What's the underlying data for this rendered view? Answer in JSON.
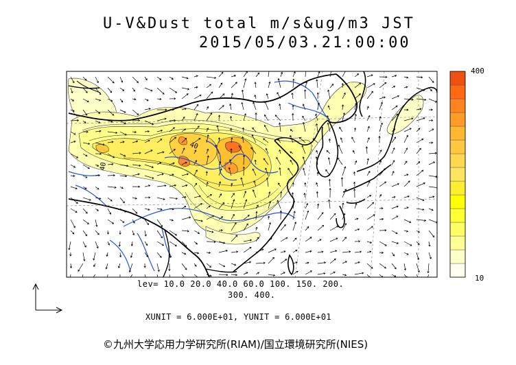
{
  "title": {
    "line1": "U-V&Dust total m/s&ug/m3 JST",
    "line2": "2015/05/03.21:00:00"
  },
  "colorbar": {
    "max_label": "400",
    "min_label": "10",
    "colors": [
      "#fffff0",
      "#ffffc8",
      "#ffff96",
      "#ffff64",
      "#ffff32",
      "#ffff00",
      "#ffee30",
      "#ffe460",
      "#ffd850",
      "#ffc840",
      "#ffb830",
      "#ff9c28",
      "#ff8420",
      "#ff6a10",
      "#f05010"
    ]
  },
  "legend": {
    "levels_line1": "lev= 10.0 20.0 40.0 60.0 100. 150. 200.",
    "levels_line2": "300. 400."
  },
  "units": "XUNIT = 6.000E+01, YUNIT = 6.000E+01",
  "copyright": "©九州大学応用力学研究所(RIAM)/国立環境研究所(NIES)",
  "contour_labels": [
    "40",
    "40"
  ]
}
